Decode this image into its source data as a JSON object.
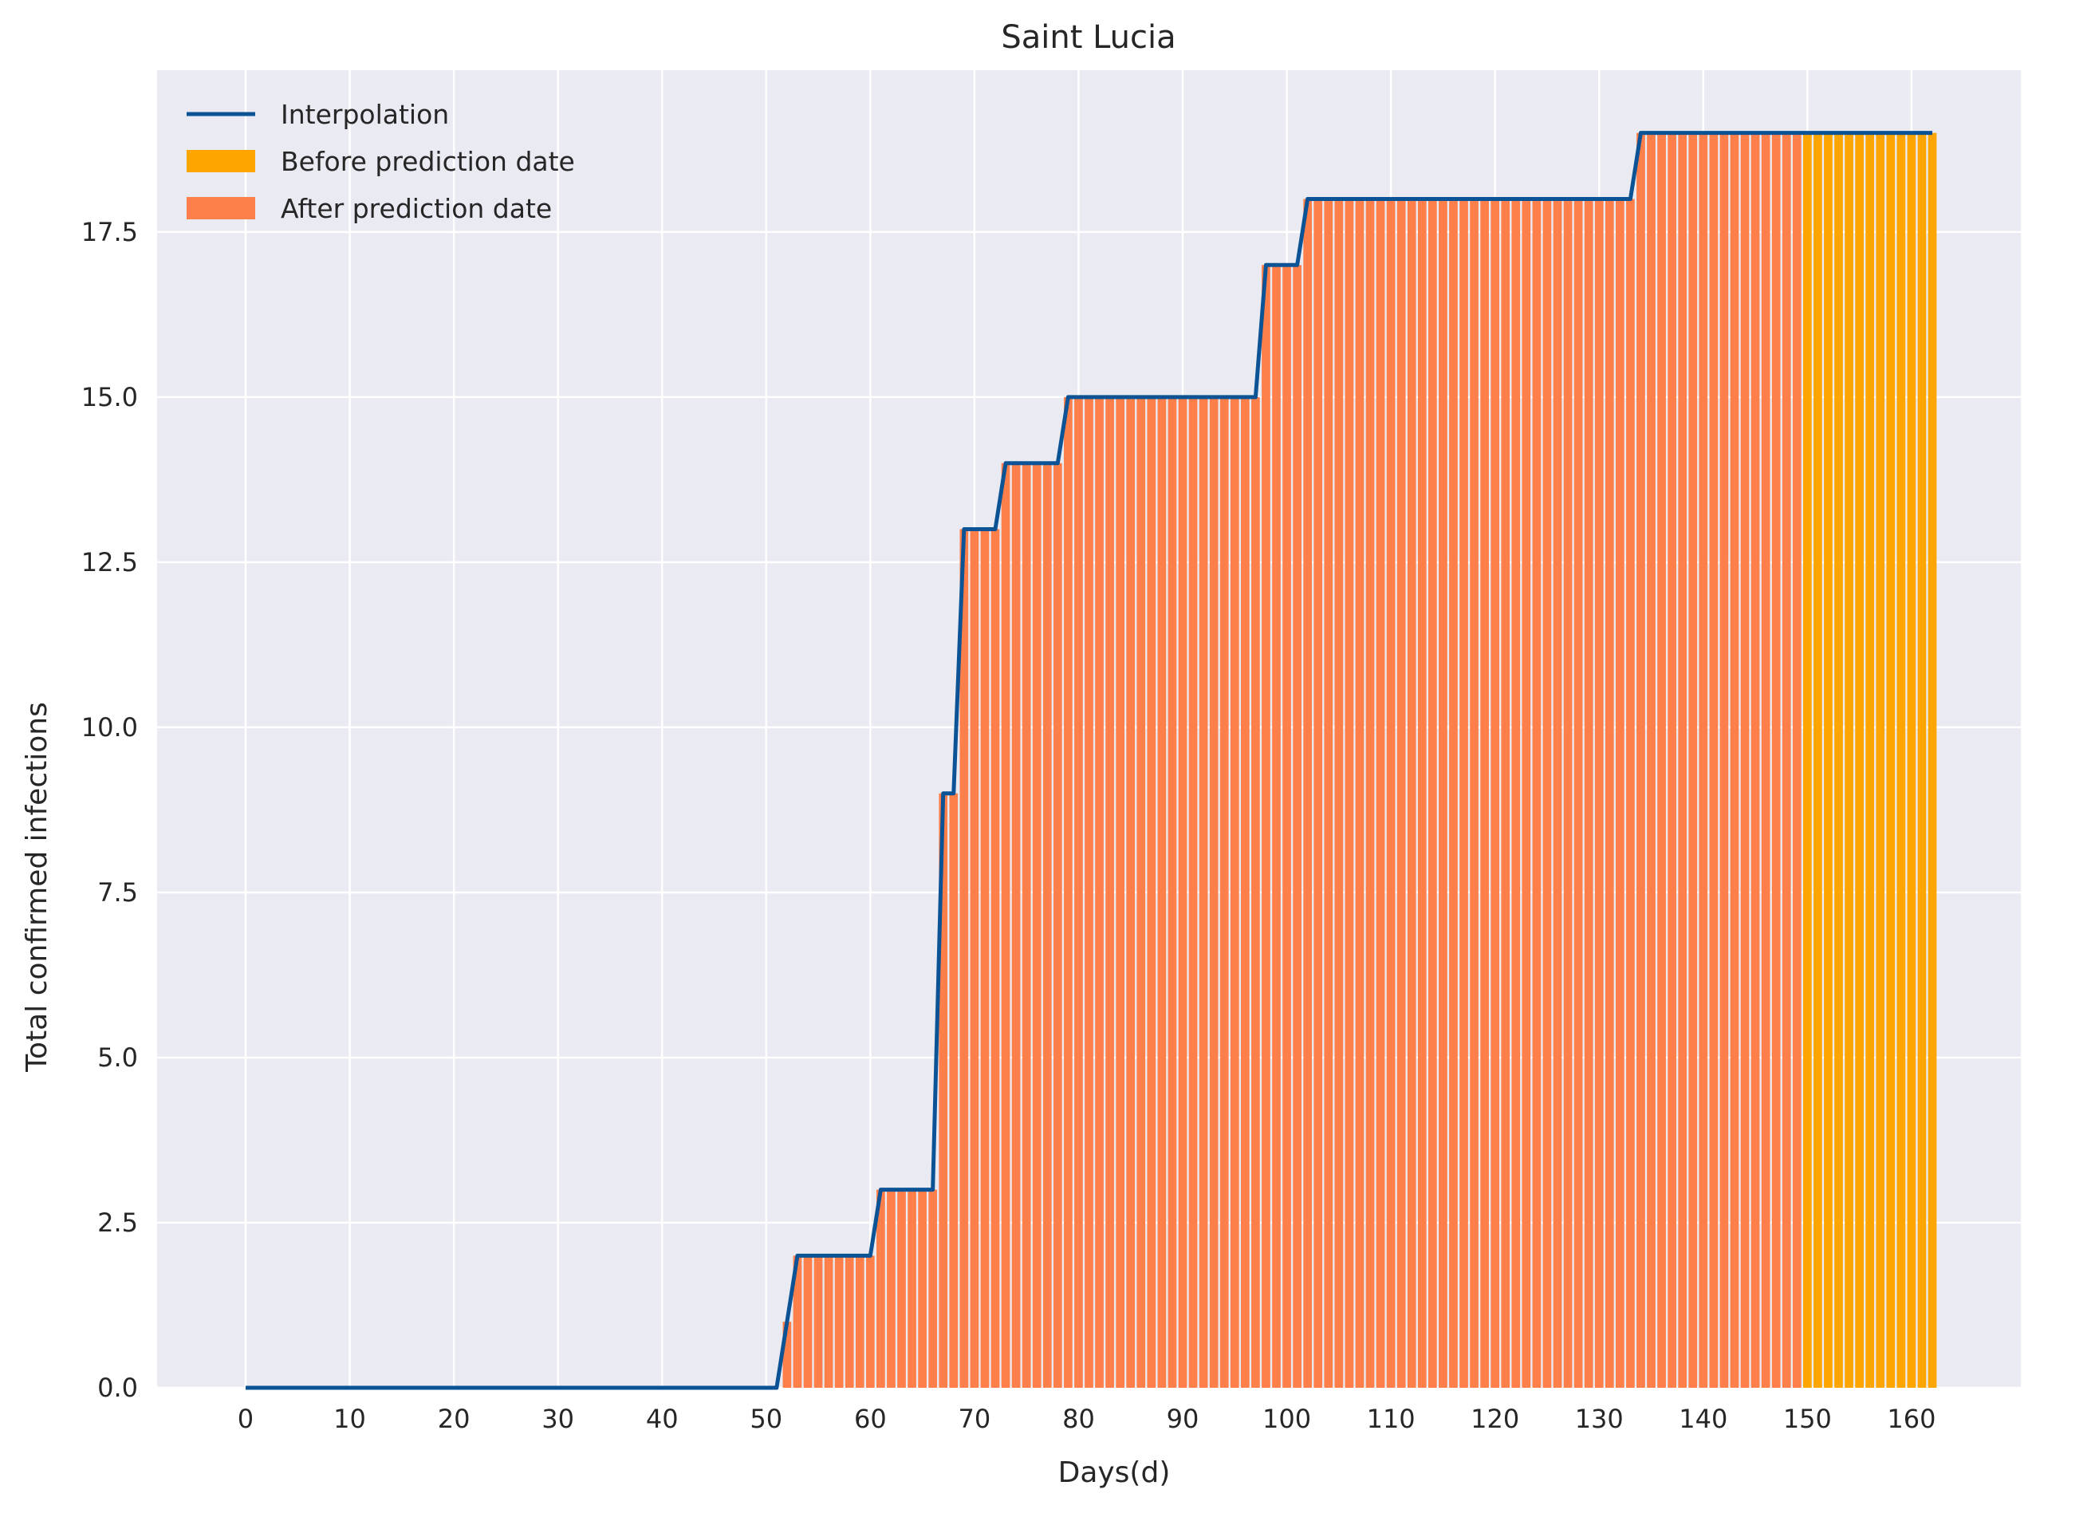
{
  "chart_data": {
    "type": "bar",
    "title": "Saint Lucia",
    "xlabel": "Days(d)",
    "ylabel": "Total confirmed infections",
    "xlim": [
      -8.5,
      170.5
    ],
    "ylim": [
      0,
      19.95
    ],
    "xticks": [
      0,
      10,
      20,
      30,
      40,
      50,
      60,
      70,
      80,
      90,
      100,
      110,
      120,
      130,
      140,
      150,
      160
    ],
    "xtick_labels": [
      "0",
      "10",
      "20",
      "30",
      "40",
      "50",
      "60",
      "70",
      "80",
      "90",
      "100",
      "110",
      "120",
      "130",
      "140",
      "150",
      "160"
    ],
    "yticks": [
      0,
      2.5,
      5,
      7.5,
      10,
      12.5,
      15,
      17.5
    ],
    "ytick_labels": [
      "0.0",
      "2.5",
      "5.0",
      "7.5",
      "10.0",
      "12.5",
      "15.0",
      "17.5"
    ],
    "grid": true,
    "legend_position": "top-left",
    "prediction_day": 150,
    "series": [
      {
        "name": "Interpolation",
        "kind": "line",
        "color": "#0b5394"
      },
      {
        "name": "Before prediction date",
        "kind": "bar",
        "color": "#ffa500"
      },
      {
        "name": "After prediction date",
        "kind": "bar",
        "color": "#ff7f4a"
      }
    ],
    "step_changes": [
      {
        "day": 0,
        "value": 0
      },
      {
        "day": 52,
        "value": 1
      },
      {
        "day": 53,
        "value": 2
      },
      {
        "day": 61,
        "value": 3
      },
      {
        "day": 67,
        "value": 9
      },
      {
        "day": 69,
        "value": 13
      },
      {
        "day": 73,
        "value": 14
      },
      {
        "day": 79,
        "value": 15
      },
      {
        "day": 98,
        "value": 17
      },
      {
        "day": 102,
        "value": 18
      },
      {
        "day": 134,
        "value": 19
      }
    ],
    "last_day": 162
  },
  "colors": {
    "plot_background": "#e9eaf2",
    "grid": "#ffffff",
    "line": "#0b5394",
    "bar_before": "#ffa500",
    "bar_after": "#ff7f4a"
  }
}
